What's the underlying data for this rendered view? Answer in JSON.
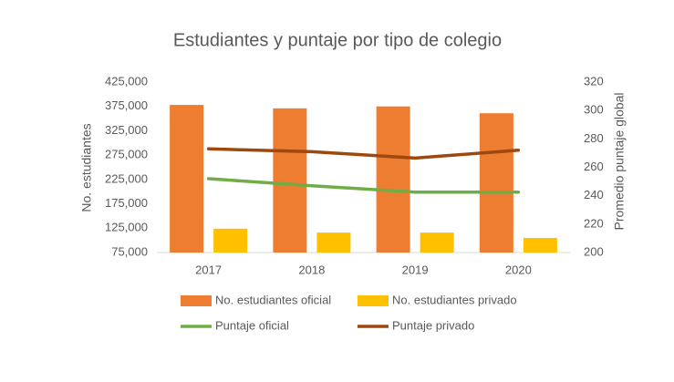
{
  "chart_data": {
    "type": "combo",
    "title": "Estudiantes y puntaje por tipo de colegio",
    "y_label": "No. estudiantes",
    "y2_label": "Promedio puntaje global",
    "categories": [
      "2017",
      "2018",
      "2019",
      "2020"
    ],
    "series": [
      {
        "name": "No. estudiantes oficial",
        "type": "bar",
        "color": "#ED7D31",
        "values": [
          378000,
          371000,
          375000,
          361000
        ]
      },
      {
        "name": "No. estudiantes privado",
        "type": "bar",
        "color": "#FFC000",
        "values": [
          124000,
          116000,
          116000,
          105000
        ]
      },
      {
        "name": "Puntaje oficial",
        "type": "line",
        "axis": "y2",
        "color": "#70AD47",
        "values": [
          252,
          247,
          242.5,
          242.5
        ]
      },
      {
        "name": "Puntaje privado",
        "type": "line",
        "axis": "y2",
        "color": "#9E480E",
        "values": [
          273,
          271,
          266.5,
          272
        ]
      }
    ],
    "ylim": [
      75000,
      425000
    ],
    "yticks": [
      {
        "value": 75000,
        "label": "75,000"
      },
      {
        "value": 125000,
        "label": "125,000"
      },
      {
        "value": 175000,
        "label": "175,000"
      },
      {
        "value": 225000,
        "label": "225,000"
      },
      {
        "value": 275000,
        "label": "275,000"
      },
      {
        "value": 325000,
        "label": "325,000"
      },
      {
        "value": 375000,
        "label": "375,000"
      },
      {
        "value": 425000,
        "label": "425,000"
      }
    ],
    "y2lim": [
      200,
      320
    ],
    "y2ticks": [
      200,
      220,
      240,
      260,
      280,
      300,
      320
    ],
    "grid": false
  }
}
